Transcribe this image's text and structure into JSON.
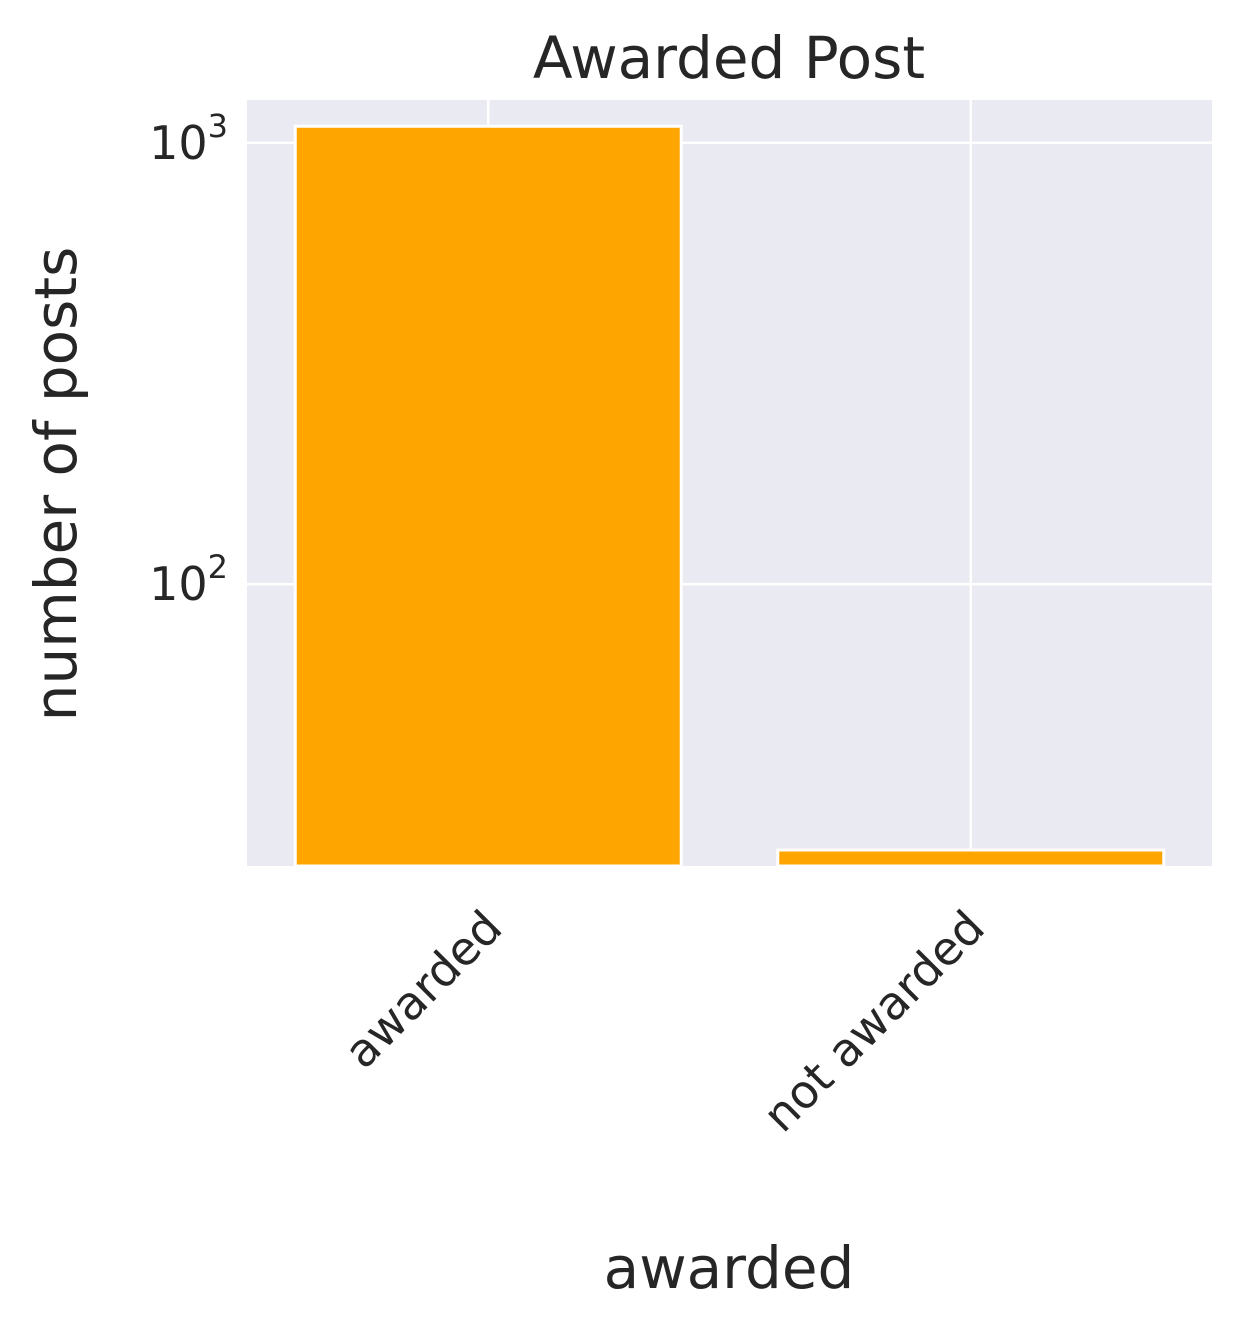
{
  "chart_data": {
    "type": "bar",
    "title": "Awarded Post",
    "xlabel": "awarded",
    "ylabel": "number of posts",
    "y_scale": "log",
    "ylim": [
      23,
      1250
    ],
    "categories": [
      "awarded",
      "not awarded"
    ],
    "values": [
      1090,
      25
    ],
    "y_ticks": [
      {
        "value": 100,
        "base": "10",
        "exp": "2"
      },
      {
        "value": 1000,
        "base": "10",
        "exp": "3"
      }
    ],
    "grid": true,
    "legend": "none",
    "colors": {
      "bar": "#ffa500",
      "bar_edge": "#ffffff",
      "plot_background": "#eaeaf2",
      "grid": "#ffffff",
      "text": "#262626"
    }
  }
}
